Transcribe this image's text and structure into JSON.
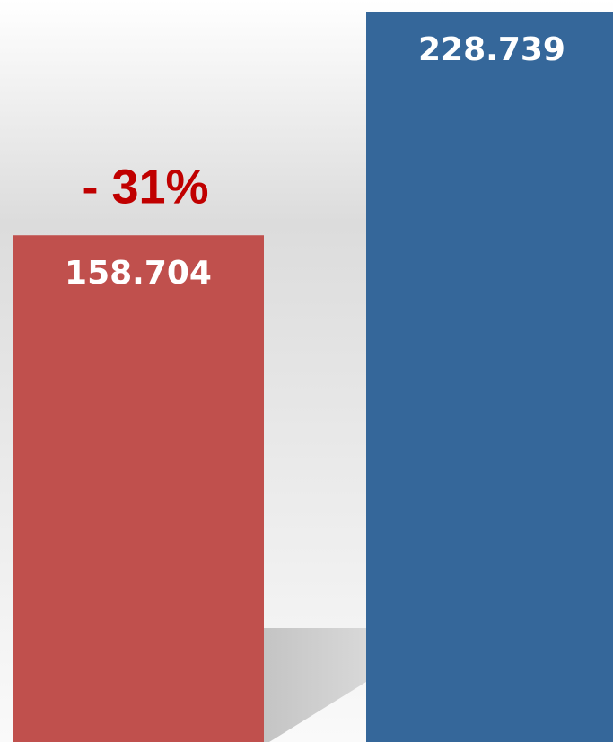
{
  "chart_data": {
    "type": "bar",
    "categories": [
      null,
      null
    ],
    "values": [
      158.704,
      228.739
    ],
    "colors": [
      "#c0504d",
      "#35679a"
    ],
    "annotation": "- 31%",
    "annotation_color": "#c00000"
  }
}
